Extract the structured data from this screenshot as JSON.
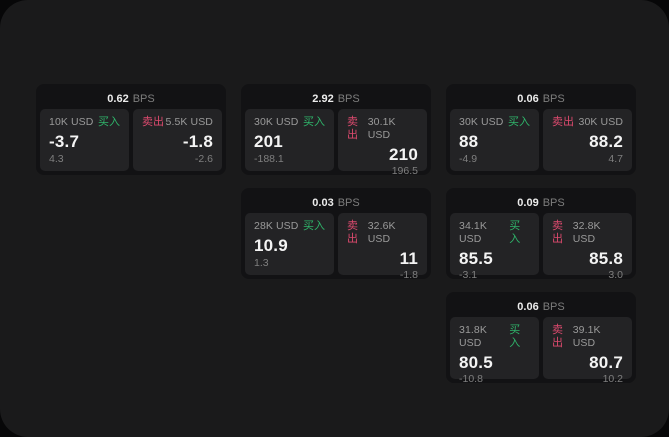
{
  "labels": {
    "unit": "BPS",
    "buy": "买入",
    "sell": "卖出"
  },
  "colors": {
    "page_bg": "#1a1a1b",
    "card_bg": "#121214",
    "panel_bg": "#232325",
    "buy": "#2fb46a",
    "sell": "#dd4a6e"
  },
  "cards": [
    {
      "bps": "0.62",
      "grid": {
        "row": 1,
        "col": 1
      },
      "buy": {
        "size": "10K USD",
        "value": "-3.7",
        "sub": "4.3"
      },
      "sell": {
        "size": "5.5K USD",
        "value": "-1.8",
        "sub": "-2.6"
      }
    },
    {
      "bps": "2.92",
      "grid": {
        "row": 1,
        "col": 2
      },
      "buy": {
        "size": "30K USD",
        "value": "201",
        "sub": "-188.1"
      },
      "sell": {
        "size": "30.1K USD",
        "value": "210",
        "sub": "196.5"
      }
    },
    {
      "bps": "0.06",
      "grid": {
        "row": 1,
        "col": 3
      },
      "buy": {
        "size": "30K USD",
        "value": "88",
        "sub": "-4.9"
      },
      "sell": {
        "size": "30K USD",
        "value": "88.2",
        "sub": "4.7"
      }
    },
    {
      "bps": "0.03",
      "grid": {
        "row": 2,
        "col": 2
      },
      "buy": {
        "size": "28K USD",
        "value": "10.9",
        "sub": "1.3"
      },
      "sell": {
        "size": "32.6K USD",
        "value": "11",
        "sub": "-1.8"
      }
    },
    {
      "bps": "0.09",
      "grid": {
        "row": 2,
        "col": 3
      },
      "buy": {
        "size": "34.1K USD",
        "value": "85.5",
        "sub": "-3.1"
      },
      "sell": {
        "size": "32.8K USD",
        "value": "85.8",
        "sub": "3.0"
      }
    },
    {
      "bps": "0.06",
      "grid": {
        "row": 3,
        "col": 3
      },
      "buy": {
        "size": "31.8K USD",
        "value": "80.5",
        "sub": "-10.8"
      },
      "sell": {
        "size": "39.1K USD",
        "value": "80.7",
        "sub": "10.2"
      }
    }
  ]
}
